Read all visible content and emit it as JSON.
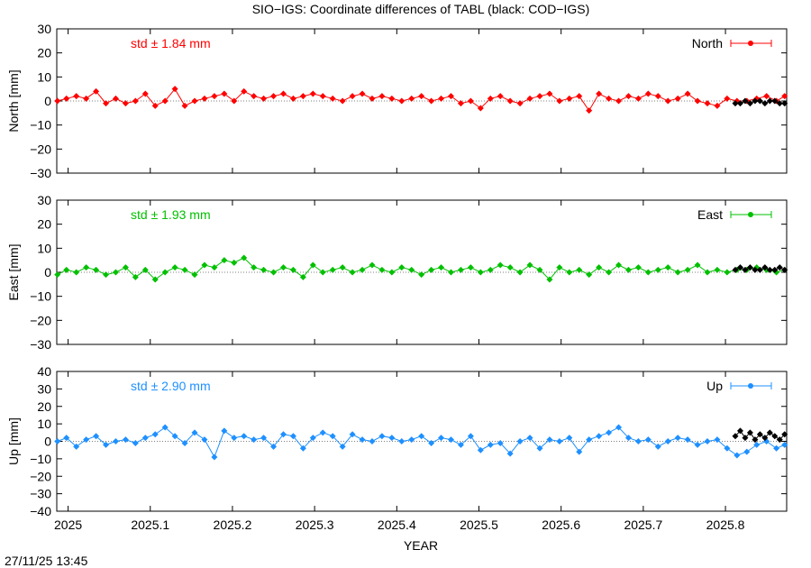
{
  "chart_data": {
    "type": "scatter",
    "title": "SIO−IGS: Coordinate differences of TABL (black: COD−IGS)",
    "xlabel": "YEAR",
    "xlim": [
      2024.9862,
      2025.8745
    ],
    "xticks": [
      "2025",
      "2025.1",
      "2025.2",
      "2025.3",
      "2025.4",
      "2025.5",
      "2025.6",
      "2025.7",
      "2025.8"
    ],
    "xtick_values": [
      2025.0,
      2025.1,
      2025.2,
      2025.3,
      2025.4,
      2025.5,
      2025.6,
      2025.7,
      2025.8
    ],
    "timestamp": "27/11/25 13:45",
    "panels": [
      {
        "name": "North",
        "ylabel": "North [mm]",
        "ylim": [
          -30,
          30
        ],
        "yticks": [
          -30,
          -20,
          -10,
          0,
          10,
          20,
          30
        ],
        "ytick_labels": [
          "−30",
          "−20",
          "−10",
          "0",
          "10",
          "20",
          "30"
        ],
        "std_label": "std ± 1.84 mm",
        "color": "#ff0000",
        "legend": "North",
        "series_sio": {
          "x": [
            2024.987,
            2024.998,
            2025.01,
            2025.022,
            2025.034,
            2025.046,
            2025.058,
            2025.07,
            2025.082,
            2025.094,
            2025.106,
            2025.118,
            2025.13,
            2025.142,
            2025.154,
            2025.166,
            2025.178,
            2025.19,
            2025.202,
            2025.214,
            2025.226,
            2025.238,
            2025.25,
            2025.262,
            2025.274,
            2025.286,
            2025.298,
            2025.31,
            2025.322,
            2025.334,
            2025.346,
            2025.358,
            2025.37,
            2025.382,
            2025.394,
            2025.406,
            2025.418,
            2025.43,
            2025.442,
            2025.454,
            2025.466,
            2025.478,
            2025.49,
            2025.502,
            2025.514,
            2025.526,
            2025.538,
            2025.55,
            2025.562,
            2025.574,
            2025.586,
            2025.598,
            2025.61,
            2025.622,
            2025.634,
            2025.646,
            2025.658,
            2025.67,
            2025.682,
            2025.694,
            2025.706,
            2025.718,
            2025.73,
            2025.742,
            2025.754,
            2025.766,
            2025.778,
            2025.79,
            2025.802,
            2025.814,
            2025.826,
            2025.838,
            2025.85,
            2025.862,
            2025.872
          ],
          "y": [
            0,
            1,
            2,
            1,
            4,
            -1,
            1,
            -1,
            0,
            3,
            -2,
            0,
            5,
            -2,
            0,
            1,
            2,
            3,
            0,
            4,
            2,
            1,
            2,
            3,
            1,
            2,
            3,
            2,
            1,
            0,
            2,
            3,
            1,
            2,
            1,
            0,
            1,
            2,
            0,
            1,
            2,
            -1,
            0,
            -3,
            1,
            2,
            0,
            -1,
            1,
            2,
            3,
            0,
            1,
            2,
            -4,
            3,
            1,
            0,
            2,
            1,
            3,
            2,
            0,
            1,
            3,
            0,
            -1,
            -2,
            1,
            0,
            0,
            1,
            2,
            0,
            2
          ]
        },
        "series_cod": {
          "x": [
            2025.812,
            2025.818,
            2025.824,
            2025.83,
            2025.836,
            2025.842,
            2025.848,
            2025.854,
            2025.86,
            2025.866,
            2025.872
          ],
          "y": [
            -1,
            -1,
            0,
            -1,
            0,
            0,
            -1,
            0,
            0,
            -1,
            -1
          ]
        }
      },
      {
        "name": "East",
        "ylabel": "East [mm]",
        "ylim": [
          -30,
          30
        ],
        "yticks": [
          -30,
          -20,
          -10,
          0,
          10,
          20,
          30
        ],
        "ytick_labels": [
          "−30",
          "−20",
          "−10",
          "0",
          "10",
          "20",
          "30"
        ],
        "std_label": "std ± 1.93 mm",
        "color": "#00c000",
        "legend": "East",
        "series_sio": {
          "x": [
            2024.987,
            2024.998,
            2025.01,
            2025.022,
            2025.034,
            2025.046,
            2025.058,
            2025.07,
            2025.082,
            2025.094,
            2025.106,
            2025.118,
            2025.13,
            2025.142,
            2025.154,
            2025.166,
            2025.178,
            2025.19,
            2025.202,
            2025.214,
            2025.226,
            2025.238,
            2025.25,
            2025.262,
            2025.274,
            2025.286,
            2025.298,
            2025.31,
            2025.322,
            2025.334,
            2025.346,
            2025.358,
            2025.37,
            2025.382,
            2025.394,
            2025.406,
            2025.418,
            2025.43,
            2025.442,
            2025.454,
            2025.466,
            2025.478,
            2025.49,
            2025.502,
            2025.514,
            2025.526,
            2025.538,
            2025.55,
            2025.562,
            2025.574,
            2025.586,
            2025.598,
            2025.61,
            2025.622,
            2025.634,
            2025.646,
            2025.658,
            2025.67,
            2025.682,
            2025.694,
            2025.706,
            2025.718,
            2025.73,
            2025.742,
            2025.754,
            2025.766,
            2025.778,
            2025.79,
            2025.802,
            2025.814,
            2025.826,
            2025.838,
            2025.85,
            2025.862,
            2025.872
          ],
          "y": [
            -1,
            1,
            0,
            2,
            1,
            -1,
            0,
            2,
            -2,
            1,
            -3,
            0,
            2,
            1,
            -1,
            3,
            2,
            5,
            4,
            6,
            2,
            1,
            0,
            2,
            1,
            -2,
            3,
            0,
            1,
            2,
            0,
            1,
            3,
            1,
            0,
            2,
            1,
            -1,
            1,
            2,
            0,
            1,
            2,
            0,
            1,
            3,
            2,
            0,
            3,
            1,
            -3,
            2,
            0,
            1,
            -1,
            2,
            0,
            3,
            1,
            2,
            0,
            1,
            2,
            0,
            1,
            3,
            0,
            1,
            0,
            1,
            1,
            2,
            1,
            0,
            1
          ]
        },
        "series_cod": {
          "x": [
            2025.812,
            2025.818,
            2025.824,
            2025.83,
            2025.836,
            2025.842,
            2025.848,
            2025.854,
            2025.86,
            2025.866,
            2025.872
          ],
          "y": [
            1,
            2,
            1,
            2,
            1,
            1,
            2,
            1,
            1,
            2,
            1
          ]
        }
      },
      {
        "name": "Up",
        "ylabel": "Up [mm]",
        "ylim": [
          -40,
          40
        ],
        "yticks": [
          -40,
          -30,
          -20,
          -10,
          0,
          10,
          20,
          30,
          40
        ],
        "ytick_labels": [
          "−40",
          "−30",
          "−20",
          "−10",
          "0",
          "10",
          "20",
          "30",
          "40"
        ],
        "std_label": "std ± 2.90 mm",
        "color": "#1e90ff",
        "legend": "Up",
        "series_sio": {
          "x": [
            2024.987,
            2024.998,
            2025.01,
            2025.022,
            2025.034,
            2025.046,
            2025.058,
            2025.07,
            2025.082,
            2025.094,
            2025.106,
            2025.118,
            2025.13,
            2025.142,
            2025.154,
            2025.166,
            2025.178,
            2025.19,
            2025.202,
            2025.214,
            2025.226,
            2025.238,
            2025.25,
            2025.262,
            2025.274,
            2025.286,
            2025.298,
            2025.31,
            2025.322,
            2025.334,
            2025.346,
            2025.358,
            2025.37,
            2025.382,
            2025.394,
            2025.406,
            2025.418,
            2025.43,
            2025.442,
            2025.454,
            2025.466,
            2025.478,
            2025.49,
            2025.502,
            2025.514,
            2025.526,
            2025.538,
            2025.55,
            2025.562,
            2025.574,
            2025.586,
            2025.598,
            2025.61,
            2025.622,
            2025.634,
            2025.646,
            2025.658,
            2025.67,
            2025.682,
            2025.694,
            2025.706,
            2025.718,
            2025.73,
            2025.742,
            2025.754,
            2025.766,
            2025.778,
            2025.79,
            2025.802,
            2025.814,
            2025.826,
            2025.838,
            2025.85,
            2025.862,
            2025.872
          ],
          "y": [
            0,
            2,
            -3,
            1,
            3,
            -2,
            0,
            1,
            -1,
            2,
            4,
            8,
            3,
            -1,
            5,
            1,
            -9,
            6,
            2,
            3,
            1,
            2,
            -3,
            4,
            3,
            -4,
            2,
            5,
            3,
            -3,
            4,
            1,
            0,
            3,
            2,
            0,
            1,
            3,
            -1,
            2,
            1,
            -2,
            3,
            -5,
            -2,
            -1,
            -7,
            0,
            2,
            -4,
            1,
            0,
            2,
            -6,
            1,
            3,
            5,
            8,
            2,
            0,
            1,
            -3,
            0,
            2,
            1,
            -2,
            0,
            1,
            -4,
            -8,
            -6,
            -2,
            0,
            -4,
            -2
          ]
        },
        "series_cod": {
          "x": [
            2025.812,
            2025.818,
            2025.824,
            2025.83,
            2025.836,
            2025.842,
            2025.848,
            2025.854,
            2025.86,
            2025.866,
            2025.872
          ],
          "y": [
            3,
            6,
            2,
            5,
            1,
            4,
            2,
            5,
            3,
            1,
            4
          ]
        }
      }
    ]
  }
}
